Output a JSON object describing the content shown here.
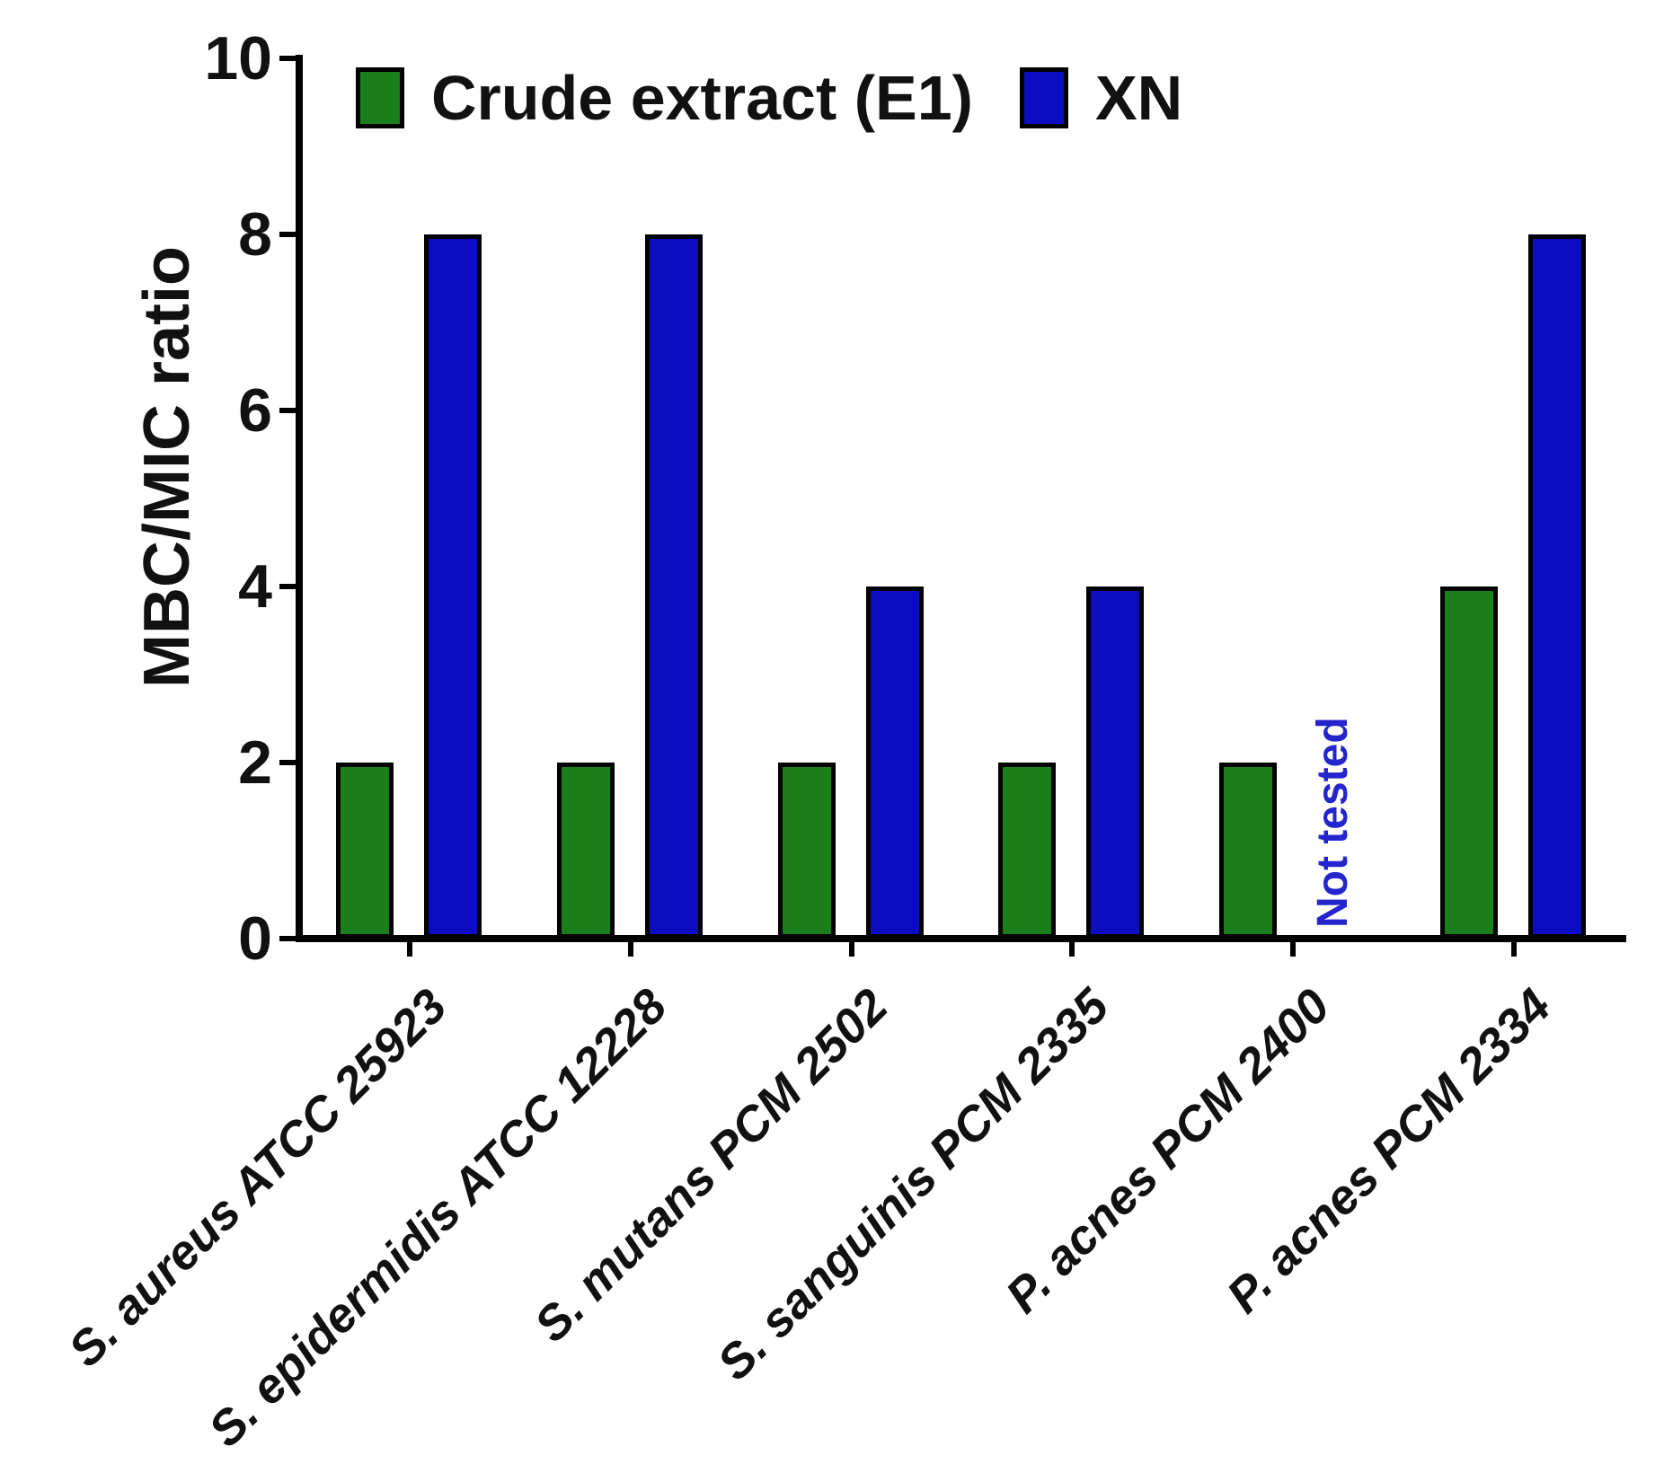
{
  "chart_data": {
    "type": "bar",
    "title": "",
    "xlabel": "",
    "ylabel": "MBC/MIC ratio",
    "ylim": [
      0,
      10
    ],
    "yticks": [
      0,
      2,
      4,
      6,
      8,
      10
    ],
    "grid": false,
    "legend_position": "top",
    "categories": [
      "S. aureus ATCC 25923",
      "S. epidermidis ATCC 12228",
      "S. mutans PCM 2502",
      "S. sanguinis PCM 2335",
      "P. acnes PCM 2400",
      "P. acnes PCM 2334"
    ],
    "series": [
      {
        "name": "Crude extract (E1)",
        "color": "#1a7e1a",
        "values": [
          2,
          2,
          2,
          2,
          2,
          4
        ]
      },
      {
        "name": "XN",
        "color": "#0c0cc0",
        "values": [
          8,
          8,
          4,
          4,
          null,
          8
        ]
      }
    ],
    "null_annotation": {
      "text": "Not tested",
      "series": "XN",
      "category": "P. acnes PCM 2400",
      "color": "#2525cd"
    },
    "axis_color": "#000000",
    "bar_border_color": "#000000"
  }
}
